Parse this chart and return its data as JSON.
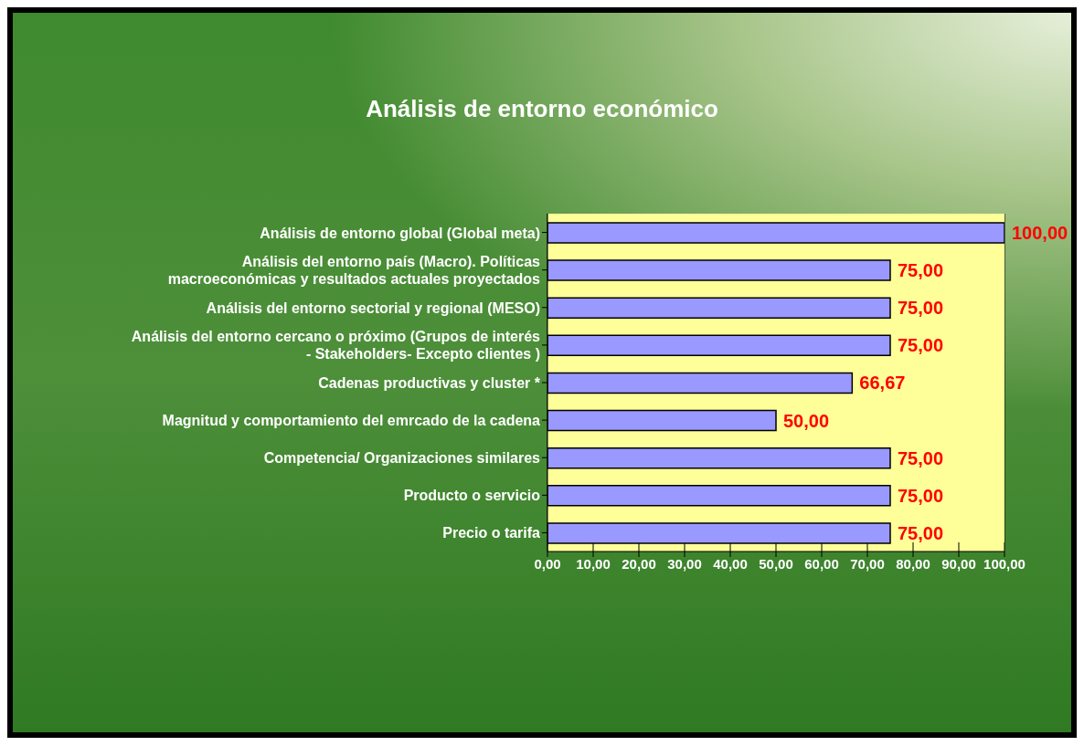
{
  "chart_data": {
    "type": "bar",
    "orientation": "horizontal",
    "title": "Análisis de  entorno económico",
    "categories": [
      "Análisis de entorno global (Global meta)",
      "Análisis del entorno país (Macro). Políticas macroeconómicas y resultados actuales proyectados",
      "Análisis del entorno sectorial y regional (MESO)",
      "Análisis del entorno cercano o próximo (Grupos de interés - Stakeholders- Excepto clientes )",
      "Cadenas productivas y cluster *",
      "Magnitud y comportamiento del emrcado de la cadena",
      "Competencia/ Organizaciones similares",
      "Producto o servicio",
      "Precio o tarifa"
    ],
    "values": [
      100,
      75,
      75,
      75,
      66.67,
      50,
      75,
      75,
      75
    ],
    "value_labels": [
      "100,00",
      "75,00",
      "75,00",
      "75,00",
      "66,67",
      "50,00",
      "75,00",
      "75,00",
      "75,00"
    ],
    "color": "#9999ff",
    "xlim": [
      0,
      100
    ],
    "xticks": [
      {
        "value": 0,
        "label": "0,00"
      },
      {
        "value": 10,
        "label": "10,00"
      },
      {
        "value": 20,
        "label": "20,00"
      },
      {
        "value": 30,
        "label": "30,00"
      },
      {
        "value": 40,
        "label": "40,00"
      },
      {
        "value": 50,
        "label": "50,00"
      },
      {
        "value": 60,
        "label": "60,00"
      },
      {
        "value": 70,
        "label": "70,00"
      },
      {
        "value": 80,
        "label": "80,00"
      },
      {
        "value": 90,
        "label": "90,00"
      },
      {
        "value": 100,
        "label": "100,00"
      }
    ],
    "grid": "x"
  }
}
